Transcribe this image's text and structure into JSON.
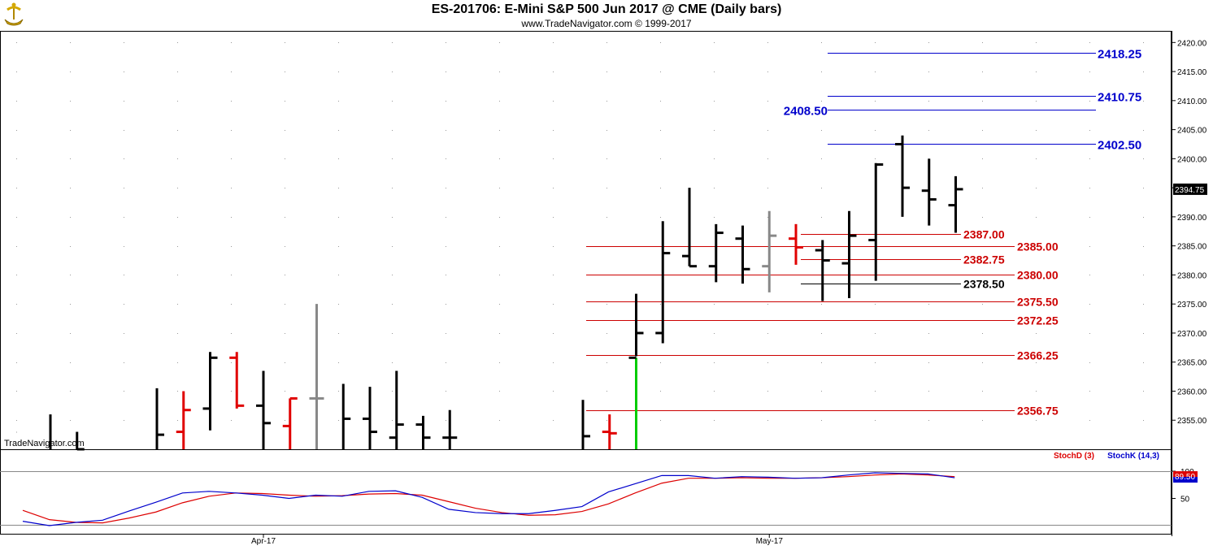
{
  "header": {
    "title": "ES-201706:  E-Mini S&P 500 Jun 2017 @ CME  (Daily bars)",
    "subtitle": "www.TradeNavigator.com © 1999-2017"
  },
  "watermark": "TradeNavigator.com",
  "colors": {
    "up": "#000000",
    "down": "#e00000",
    "neutral": "#888888",
    "blue_level": "#0000cc",
    "red_level": "#cc0000",
    "green_bar": "#00cc00",
    "stoch_d": "#dd0000",
    "stoch_k": "#0000cc"
  },
  "chart_data": [
    {
      "type": "ohlc",
      "title": "ES-201706:  E-Mini S&P 500 Jun 2017 @ CME  (Daily bars)",
      "ylim": [
        2350,
        2422
      ],
      "yticks": [
        "2355.00",
        "2360.00",
        "2365.00",
        "2370.00",
        "2375.00",
        "2380.00",
        "2385.00",
        "2390.00",
        "2395.00",
        "2400.00",
        "2405.00",
        "2410.00",
        "2415.00",
        "2420.00"
      ],
      "x_labels": [
        {
          "label": "Apr-17",
          "index": 8
        },
        {
          "label": "May-17",
          "index": 27
        }
      ],
      "last_price": "2394.75",
      "bars": [
        {
          "o": null,
          "h": 2356,
          "l": 2350,
          "c": null,
          "color": "up"
        },
        {
          "o": null,
          "h": 2353,
          "l": 2350,
          "c": 2350,
          "color": "up"
        },
        null,
        null,
        {
          "o": null,
          "h": 2360.5,
          "l": 2350,
          "c": 2352.5,
          "color": "up"
        },
        {
          "o": 2353,
          "h": 2360,
          "l": 2350,
          "c": 2356.75,
          "color": "down"
        },
        {
          "o": 2357,
          "h": 2366.75,
          "l": 2353.25,
          "c": 2365.75,
          "color": "up"
        },
        {
          "o": 2365.75,
          "h": 2366.75,
          "l": 2357,
          "c": 2357.5,
          "color": "down"
        },
        {
          "o": 2357.5,
          "h": 2363.5,
          "l": 2350,
          "c": 2354.5,
          "color": "up"
        },
        {
          "o": 2354,
          "h": 2358.75,
          "l": 2350,
          "c": 2358.75,
          "color": "down"
        },
        {
          "o": 2358.75,
          "h": 2375,
          "l": 2350,
          "c": 2358.75,
          "color": "neutral"
        },
        {
          "o": null,
          "h": 2361.25,
          "l": 2350,
          "c": 2355.25,
          "color": "up"
        },
        {
          "o": 2355.25,
          "h": 2360.75,
          "l": 2350,
          "c": 2353,
          "color": "up"
        },
        {
          "o": 2352,
          "h": 2363.5,
          "l": 2350,
          "c": 2354.25,
          "color": "up"
        },
        {
          "o": 2354.25,
          "h": 2355.75,
          "l": 2350,
          "c": 2352,
          "color": "up"
        },
        {
          "o": 2352,
          "h": 2356.75,
          "l": 2350,
          "c": 2352,
          "color": "up"
        },
        null,
        null,
        null,
        null,
        {
          "o": null,
          "h": 2358.5,
          "l": 2350,
          "c": 2352.25,
          "color": "up"
        },
        {
          "o": 2353,
          "h": 2356,
          "l": 2350,
          "c": 2352.75,
          "color": "down"
        },
        {
          "o": 2365.75,
          "h": 2376.75,
          "l": 2366,
          "c": 2370,
          "color": "up"
        },
        {
          "o": 2370,
          "h": 2389.25,
          "l": 2368.25,
          "c": 2383.75,
          "color": "up"
        },
        {
          "o": 2383.25,
          "h": 2395,
          "l": 2381.5,
          "c": 2381.5,
          "color": "up"
        },
        {
          "o": 2381.5,
          "h": 2388.75,
          "l": 2378.75,
          "c": 2387.25,
          "color": "up"
        },
        {
          "o": 2386.25,
          "h": 2388.5,
          "l": 2378.5,
          "c": 2381,
          "color": "up"
        },
        {
          "o": 2381.5,
          "h": 2391,
          "l": 2377,
          "c": 2386.75,
          "color": "neutral"
        },
        {
          "o": 2386.25,
          "h": 2388.75,
          "l": 2381.75,
          "c": 2384.75,
          "color": "down"
        },
        {
          "o": 2384.25,
          "h": 2386,
          "l": 2375.5,
          "c": 2382.5,
          "color": "up"
        },
        {
          "o": 2382,
          "h": 2391,
          "l": 2376,
          "c": 2386.75,
          "color": "up"
        },
        {
          "o": 2386,
          "h": 2399.25,
          "l": 2379,
          "c": 2399,
          "color": "up"
        },
        {
          "o": 2402.5,
          "h": 2404,
          "l": 2390,
          "c": 2395,
          "color": "up"
        },
        {
          "o": 2394.5,
          "h": 2400,
          "l": 2388.5,
          "c": 2393,
          "color": "up"
        },
        {
          "o": 2392,
          "h": 2397,
          "l": 2387.25,
          "c": 2394.75,
          "color": "up"
        }
      ],
      "green_bar": {
        "index": 22,
        "from": 2350,
        "to": 2365.75
      },
      "levels_blue": [
        {
          "value": 2418.25,
          "label": "2418.25"
        },
        {
          "value": 2410.75,
          "label": "2410.75"
        },
        {
          "value": 2408.5,
          "label": "2408.50"
        },
        {
          "value": 2402.5,
          "label": "2402.50"
        }
      ],
      "levels_red": [
        {
          "value": 2387.0,
          "label": "2387.00"
        },
        {
          "value": 2385.0,
          "label": "2385.00"
        },
        {
          "value": 2382.75,
          "label": "2382.75"
        },
        {
          "value": 2380.0,
          "label": "2380.00"
        },
        {
          "value": 2375.5,
          "label": "2375.50"
        },
        {
          "value": 2372.25,
          "label": "2372.25"
        },
        {
          "value": 2366.25,
          "label": "2366.25"
        },
        {
          "value": 2356.75,
          "label": "2356.75"
        }
      ],
      "levels_black": [
        {
          "value": 2378.5,
          "label": "2378.50"
        }
      ]
    },
    {
      "type": "line",
      "ylim": [
        0,
        100
      ],
      "yticks": [
        "50",
        "100"
      ],
      "legend": [
        "StochD (3)",
        "StochK (14,3)"
      ],
      "last_value": "89.50",
      "series": [
        {
          "name": "StochD (3)",
          "values": [
            28,
            11,
            6,
            5,
            14,
            25,
            42,
            54,
            60,
            59,
            56,
            54,
            55,
            58,
            59,
            56,
            44,
            32,
            24,
            19,
            20,
            26,
            40,
            60,
            78,
            87,
            87,
            88,
            87,
            87,
            88,
            90,
            93,
            95,
            93,
            90
          ]
        },
        {
          "name": "StochK (14,3)",
          "values": [
            8,
            0,
            6,
            10,
            27,
            43,
            60,
            63,
            60,
            56,
            50,
            56,
            54,
            63,
            64,
            52,
            30,
            24,
            22,
            22,
            28,
            35,
            62,
            77,
            92,
            92,
            87,
            90,
            89,
            87,
            88,
            93,
            97,
            96,
            95,
            88
          ]
        }
      ]
    }
  ]
}
